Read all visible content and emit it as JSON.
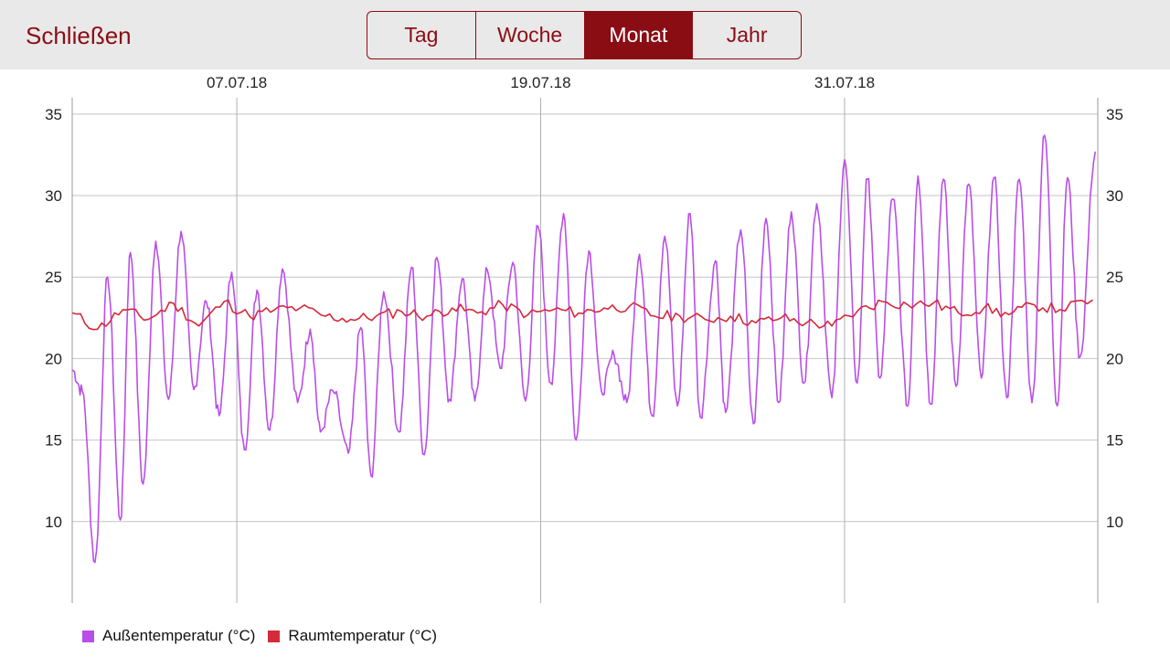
{
  "header": {
    "close_label": "Schließen",
    "tabs": [
      {
        "label": "Tag",
        "active": false
      },
      {
        "label": "Woche",
        "active": false
      },
      {
        "label": "Monat",
        "active": true
      },
      {
        "label": "Jahr",
        "active": false
      }
    ],
    "accent_color": "#8b0d14"
  },
  "chart_data": {
    "type": "line",
    "title": "",
    "xlabel": "",
    "ylabel": "",
    "x_tick_labels": [
      "07.07.18",
      "19.07.18",
      "31.07.18"
    ],
    "x_tick_days": [
      6.5,
      18.5,
      30.5
    ],
    "x_range_days": [
      0,
      40.5
    ],
    "x_day_offset_note": "",
    "ylim": [
      5,
      36
    ],
    "y_ticks": [
      10,
      15,
      20,
      25,
      30,
      35
    ],
    "grid": true,
    "legend_position": "bottom-left",
    "series": [
      {
        "name": "Außentemperatur (°C)",
        "color": "#b94ee8",
        "min": [
          [
            0.0,
            19.3
          ],
          [
            0.9,
            7.5
          ],
          [
            1.9,
            10.1
          ],
          [
            2.8,
            12.3
          ],
          [
            3.8,
            17.5
          ],
          [
            4.8,
            18.1
          ],
          [
            5.8,
            16.5
          ],
          [
            6.8,
            14.4
          ],
          [
            7.8,
            15.6
          ],
          [
            8.9,
            17.3
          ],
          [
            9.8,
            15.5
          ],
          [
            10.9,
            14.2
          ],
          [
            11.8,
            12.8
          ],
          [
            12.9,
            15.5
          ],
          [
            13.9,
            14.1
          ],
          [
            14.9,
            17.5
          ],
          [
            15.9,
            17.4
          ],
          [
            16.9,
            19.4
          ],
          [
            17.9,
            17.4
          ],
          [
            18.9,
            18.5
          ],
          [
            19.9,
            15.0
          ],
          [
            20.9,
            18.0
          ],
          [
            21.9,
            17.3
          ],
          [
            22.9,
            16.5
          ],
          [
            23.9,
            17.1
          ],
          [
            24.8,
            16.4
          ],
          [
            25.8,
            16.7
          ],
          [
            26.9,
            16.0
          ],
          [
            27.9,
            17.3
          ],
          [
            28.9,
            18.5
          ],
          [
            30.0,
            17.6
          ],
          [
            31.0,
            18.5
          ],
          [
            31.9,
            18.8
          ],
          [
            33.0,
            17.1
          ],
          [
            33.9,
            17.2
          ],
          [
            34.9,
            18.3
          ],
          [
            35.9,
            18.8
          ],
          [
            36.9,
            17.6
          ],
          [
            37.9,
            17.3
          ],
          [
            38.9,
            17.1
          ],
          [
            39.8,
            20.1
          ]
        ],
        "max": [
          [
            0.4,
            18.0
          ],
          [
            1.4,
            25.0
          ],
          [
            2.3,
            26.5
          ],
          [
            3.3,
            27.2
          ],
          [
            4.3,
            27.8
          ],
          [
            5.3,
            23.5
          ],
          [
            6.3,
            25.3
          ],
          [
            7.3,
            24.2
          ],
          [
            8.3,
            25.5
          ],
          [
            9.4,
            21.8
          ],
          [
            10.3,
            18.0
          ],
          [
            11.4,
            21.9
          ],
          [
            12.3,
            24.1
          ],
          [
            13.4,
            25.6
          ],
          [
            14.4,
            26.2
          ],
          [
            15.4,
            24.9
          ],
          [
            16.4,
            25.4
          ],
          [
            17.4,
            25.9
          ],
          [
            18.4,
            28.1
          ],
          [
            19.4,
            28.9
          ],
          [
            20.4,
            26.6
          ],
          [
            21.4,
            20.2
          ],
          [
            22.4,
            26.4
          ],
          [
            23.4,
            27.5
          ],
          [
            24.4,
            28.9
          ],
          [
            25.4,
            26.0
          ],
          [
            26.4,
            27.9
          ],
          [
            27.4,
            28.6
          ],
          [
            28.4,
            29.0
          ],
          [
            29.4,
            29.5
          ],
          [
            30.5,
            32.2
          ],
          [
            31.4,
            31.0
          ],
          [
            32.4,
            29.8
          ],
          [
            33.4,
            31.2
          ],
          [
            34.4,
            31.0
          ],
          [
            35.4,
            30.7
          ],
          [
            36.4,
            31.1
          ],
          [
            37.4,
            31.0
          ],
          [
            38.4,
            33.7
          ],
          [
            39.3,
            31.1
          ],
          [
            40.4,
            32.7
          ]
        ]
      },
      {
        "name": "Raumtemperatur (°C)",
        "color": "#d42a3a",
        "points": [
          [
            0.0,
            22.8
          ],
          [
            1.0,
            21.8
          ],
          [
            2.0,
            23.0
          ],
          [
            3.0,
            22.4
          ],
          [
            4.0,
            23.4
          ],
          [
            5.0,
            22.0
          ],
          [
            6.0,
            23.5
          ],
          [
            7.0,
            22.6
          ],
          [
            8.0,
            23.0
          ],
          [
            9.0,
            23.1
          ],
          [
            10.0,
            22.6
          ],
          [
            11.0,
            22.4
          ],
          [
            12.0,
            22.6
          ],
          [
            13.0,
            22.9
          ],
          [
            14.0,
            22.6
          ],
          [
            15.0,
            23.1
          ],
          [
            16.0,
            22.8
          ],
          [
            17.0,
            23.3
          ],
          [
            18.0,
            22.7
          ],
          [
            19.0,
            23.0
          ],
          [
            20.0,
            22.8
          ],
          [
            21.0,
            23.1
          ],
          [
            22.0,
            23.2
          ],
          [
            23.0,
            22.6
          ],
          [
            24.0,
            22.6
          ],
          [
            25.0,
            22.4
          ],
          [
            26.0,
            22.6
          ],
          [
            27.0,
            22.2
          ],
          [
            28.0,
            22.5
          ],
          [
            29.0,
            22.2
          ],
          [
            30.0,
            22.0
          ],
          [
            31.0,
            22.9
          ],
          [
            32.0,
            23.5
          ],
          [
            33.0,
            23.3
          ],
          [
            34.0,
            23.4
          ],
          [
            35.0,
            22.8
          ],
          [
            36.0,
            23.1
          ],
          [
            37.0,
            22.7
          ],
          [
            38.0,
            23.3
          ],
          [
            39.0,
            23.0
          ],
          [
            40.3,
            23.6
          ]
        ]
      }
    ]
  }
}
